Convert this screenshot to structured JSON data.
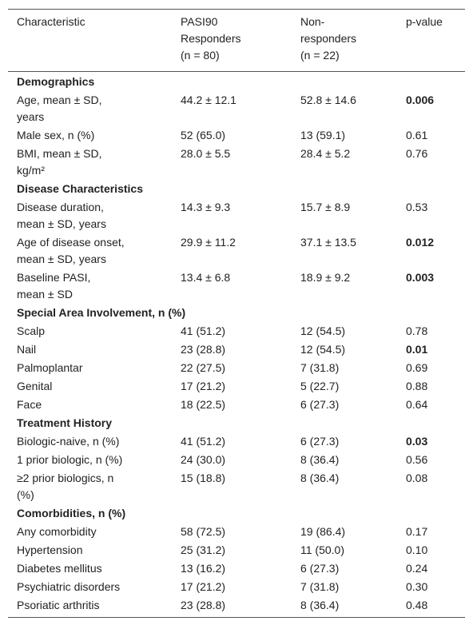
{
  "header": [
    [
      "Characteristic"
    ],
    [
      "PASI90",
      "Responders",
      "(n = 80)"
    ],
    [
      "Non-",
      "responders",
      "(n = 22)"
    ],
    [
      "p-value"
    ]
  ],
  "sections": [
    {
      "title": "Demographics",
      "rows": [
        {
          "label": [
            "Age, mean ± SD,",
            "years"
          ],
          "responders": "44.2 ± 12.1",
          "nonresponders": "52.8 ± 14.6",
          "p": "0.006",
          "bold": true
        },
        {
          "label": [
            "Male sex, n (%)"
          ],
          "responders": "52 (65.0)",
          "nonresponders": "13 (59.1)",
          "p": "0.61",
          "bold": false
        },
        {
          "label": [
            "BMI, mean ± SD,",
            "kg/m²"
          ],
          "responders": "28.0 ± 5.5",
          "nonresponders": "28.4 ± 5.2",
          "p": "0.76",
          "bold": false
        }
      ]
    },
    {
      "title": "Disease Characteristics",
      "rows": [
        {
          "label": [
            "Disease duration,",
            "mean ± SD, years"
          ],
          "responders": "14.3 ± 9.3",
          "nonresponders": "15.7 ± 8.9",
          "p": "0.53",
          "bold": false
        },
        {
          "label": [
            "Age of disease onset,",
            "mean ± SD, years"
          ],
          "responders": "29.9 ± 11.2",
          "nonresponders": "37.1 ± 13.5",
          "p": "0.012",
          "bold": true
        },
        {
          "label": [
            "Baseline PASI,",
            "mean ± SD"
          ],
          "responders": "13.4 ± 6.8",
          "nonresponders": "18.9 ± 9.2",
          "p": "0.003",
          "bold": true
        }
      ]
    },
    {
      "title": "Special Area Involvement, n (%)",
      "rows": [
        {
          "label": [
            "Scalp"
          ],
          "responders": "41 (51.2)",
          "nonresponders": "12 (54.5)",
          "p": "0.78",
          "bold": false
        },
        {
          "label": [
            "Nail"
          ],
          "responders": "23 (28.8)",
          "nonresponders": "12 (54.5)",
          "p": "0.01",
          "bold": true
        },
        {
          "label": [
            "Palmoplantar"
          ],
          "responders": "22 (27.5)",
          "nonresponders": "7 (31.8)",
          "p": "0.69",
          "bold": false
        },
        {
          "label": [
            "Genital"
          ],
          "responders": "17 (21.2)",
          "nonresponders": "5 (22.7)",
          "p": "0.88",
          "bold": false
        },
        {
          "label": [
            "Face"
          ],
          "responders": "18 (22.5)",
          "nonresponders": "6 (27.3)",
          "p": "0.64",
          "bold": false
        }
      ]
    },
    {
      "title": "Treatment History",
      "rows": [
        {
          "label": [
            "Biologic-naive, n (%)"
          ],
          "responders": "41 (51.2)",
          "nonresponders": "6 (27.3)",
          "p": "0.03",
          "bold": true
        },
        {
          "label": [
            "1 prior biologic, n (%)"
          ],
          "responders": "24 (30.0)",
          "nonresponders": "8 (36.4)",
          "p": "0.56",
          "bold": false
        },
        {
          "label": [
            "≥2 prior biologics, n",
            "(%)"
          ],
          "responders": "15 (18.8)",
          "nonresponders": "8 (36.4)",
          "p": "0.08",
          "bold": false
        }
      ]
    },
    {
      "title": "Comorbidities, n (%)",
      "rows": [
        {
          "label": [
            "Any comorbidity"
          ],
          "responders": "58 (72.5)",
          "nonresponders": "19 (86.4)",
          "p": "0.17",
          "bold": false
        },
        {
          "label": [
            "Hypertension"
          ],
          "responders": "25 (31.2)",
          "nonresponders": "11 (50.0)",
          "p": "0.10",
          "bold": false
        },
        {
          "label": [
            "Diabetes mellitus"
          ],
          "responders": "13 (16.2)",
          "nonresponders": "6 (27.3)",
          "p": "0.24",
          "bold": false
        },
        {
          "label": [
            "Psychiatric disorders"
          ],
          "responders": "17 (21.2)",
          "nonresponders": "7 (31.8)",
          "p": "0.30",
          "bold": false
        },
        {
          "label": [
            "Psoriatic arthritis"
          ],
          "responders": "23 (28.8)",
          "nonresponders": "8 (36.4)",
          "p": "0.48",
          "bold": false
        }
      ]
    }
  ]
}
